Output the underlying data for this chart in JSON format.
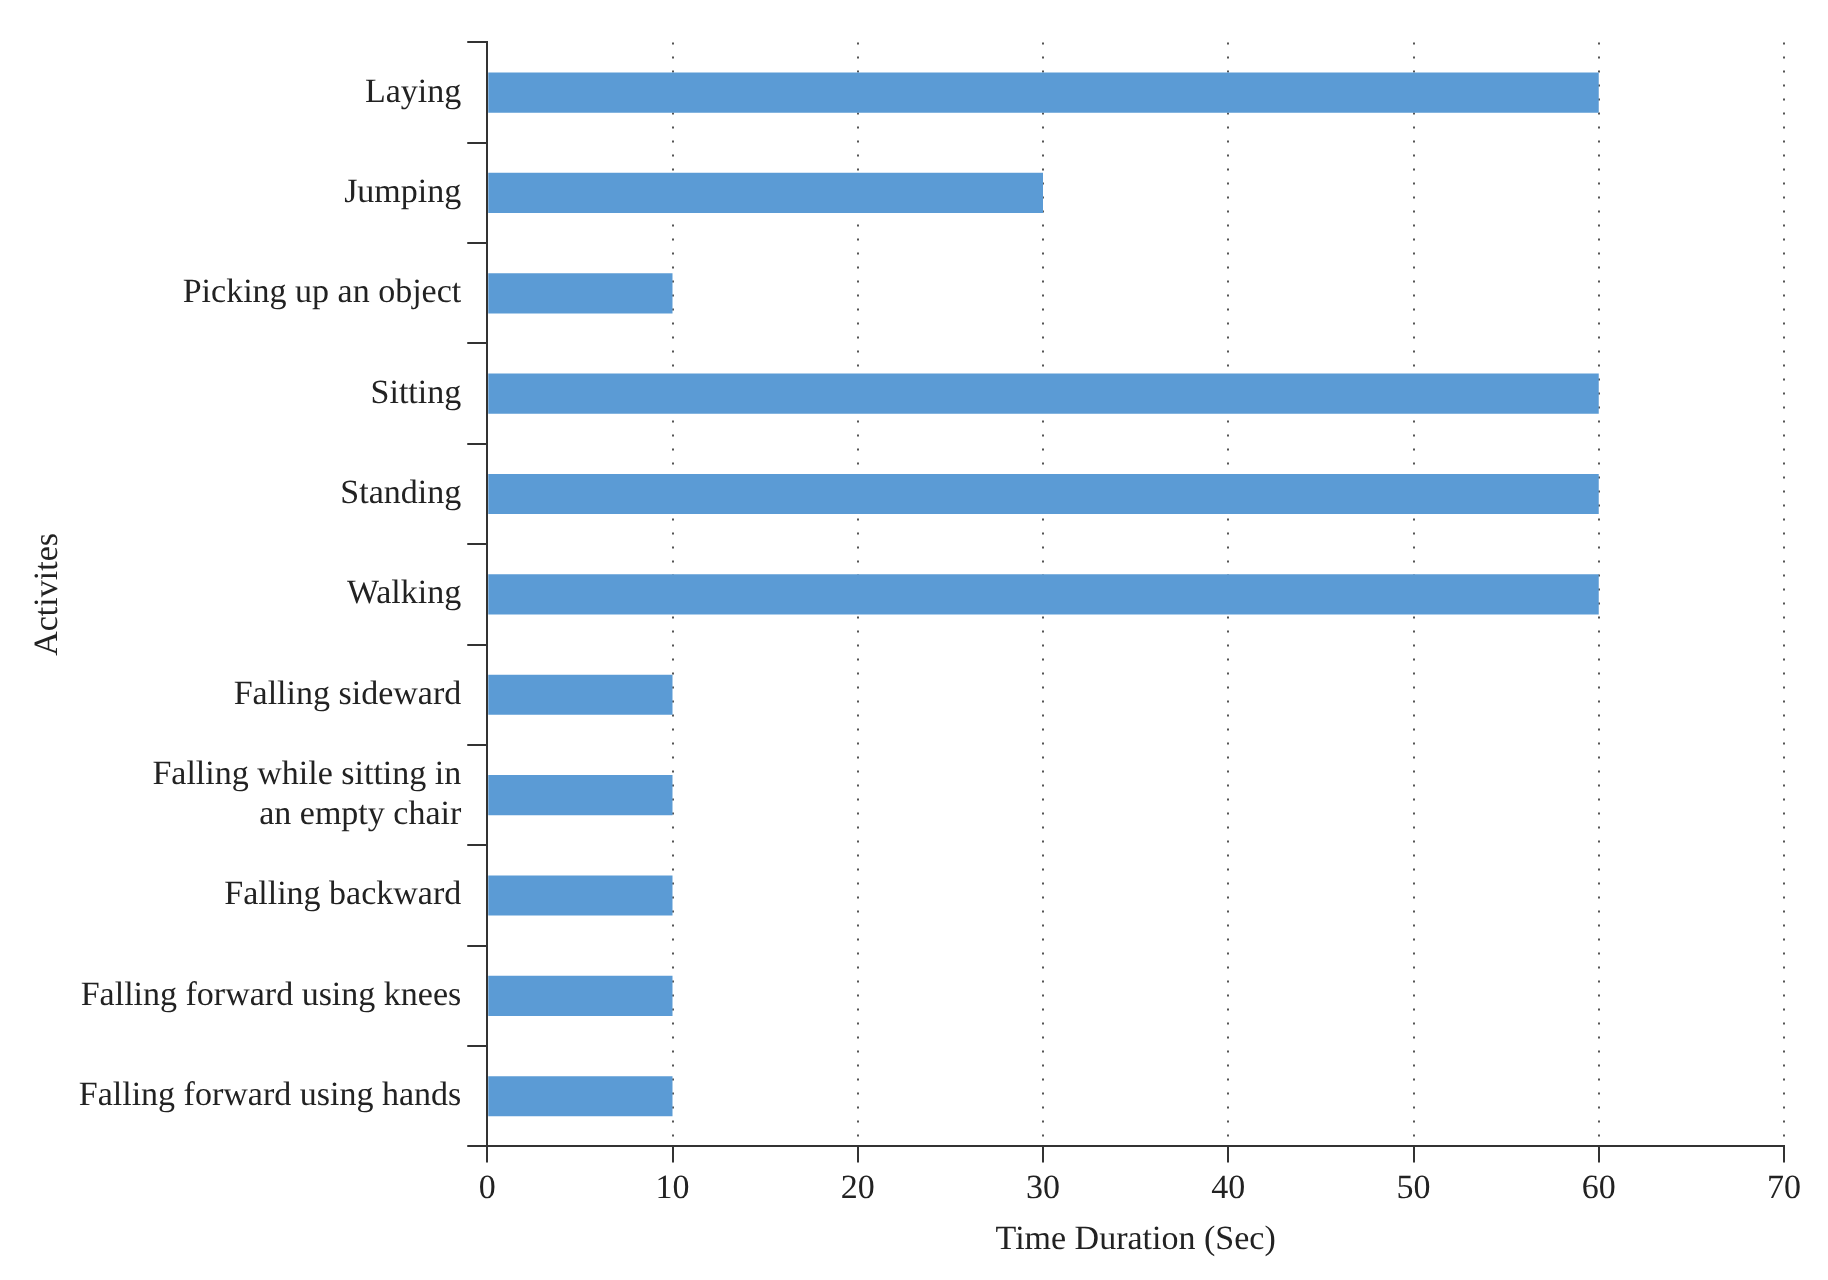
{
  "chart_data": {
    "type": "bar",
    "orientation": "horizontal",
    "xlabel": "Time Duration (Sec)",
    "ylabel": "Activites",
    "categories": [
      "Laying",
      "Jumping",
      "Picking up an object",
      "Sitting",
      "Standing",
      "Walking",
      "Falling sideward",
      "Falling while sitting in an empty chair",
      "Falling backward",
      "Falling forward using knees",
      "Falling forward using hands"
    ],
    "values": [
      60,
      30,
      10,
      60,
      60,
      60,
      10,
      10,
      10,
      10,
      10
    ],
    "color": "#5b9bd5",
    "xlim": [
      0,
      70
    ],
    "xticks": [
      0,
      10,
      20,
      30,
      40,
      50,
      60,
      70
    ],
    "grid": "x",
    "line_style": "dotted",
    "legend": false
  }
}
